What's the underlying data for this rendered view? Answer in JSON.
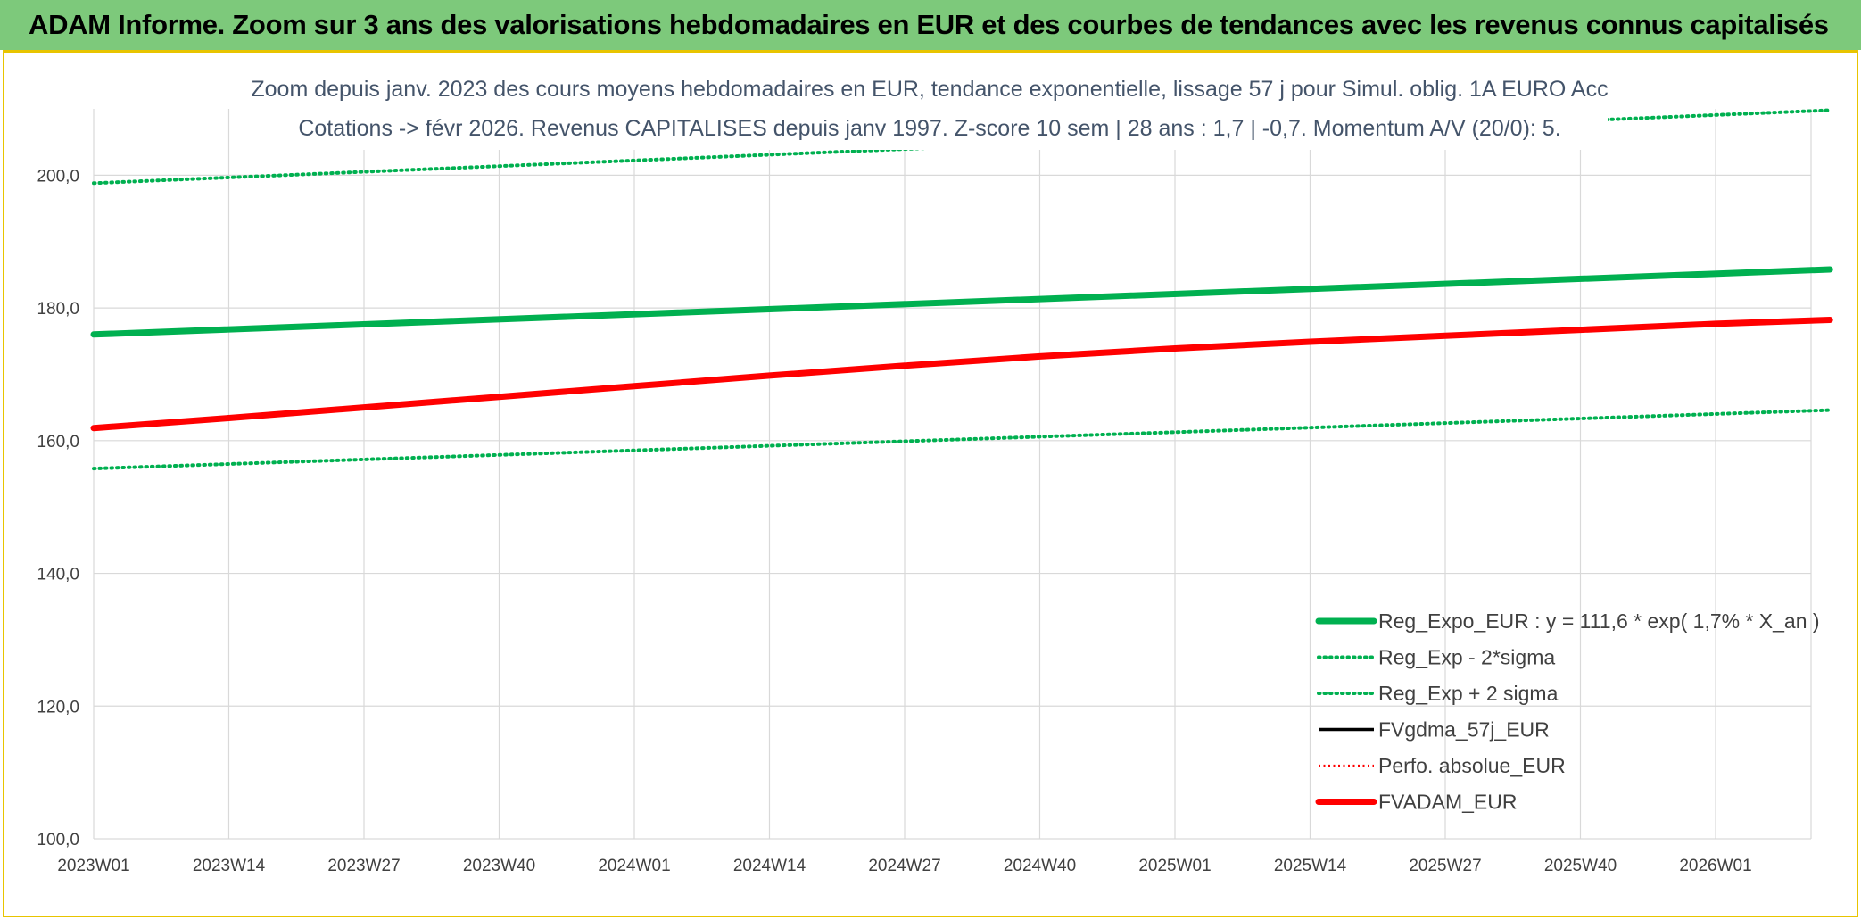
{
  "banner": {
    "title": "ADAM Informe. Zoom sur 3 ans des valorisations hebdomadaires en EUR et des courbes de tendances avec les revenus connus capitalisés"
  },
  "colors": {
    "banner_bg": "#7dc97b",
    "frame_border": "#e8c400",
    "green": "#00b050",
    "red": "#ff0000",
    "black": "#000000",
    "grid": "#d9d9d9",
    "axis_text": "#404040",
    "title_text": "#44546a"
  },
  "chart_data": {
    "type": "line",
    "title_line1": "Zoom depuis janv. 2023 des cours moyens hebdomadaires en EUR, tendance exponentielle, lissage 57 j pour Simul. oblig. 1A EURO Acc",
    "title_line2": "Cotations -> févr 2026. Revenus CAPITALISES depuis janv 1997. Z-score 10 sem | 28 ans : 1,7 | -0,7. Momentum A/V (20/0): 5.",
    "xlabel": "",
    "ylabel": "",
    "categories": [
      "2023W01",
      "2023W14",
      "2023W27",
      "2023W40",
      "2024W01",
      "2024W14",
      "2024W27",
      "2024W40",
      "2025W01",
      "2025W14",
      "2025W27",
      "2025W40",
      "2026W01"
    ],
    "x_range_weeks": [
      0,
      167
    ],
    "ylim": [
      100,
      210
    ],
    "yticks": [
      "100,0",
      "120,0",
      "140,0",
      "160,0",
      "180,0",
      "200,0"
    ],
    "ytick_values": [
      100,
      120,
      140,
      160,
      180,
      200
    ],
    "grid": true,
    "legend_position": "bottom-right",
    "series": [
      {
        "name": "Reg_Expo_EUR : y = 111,6 * exp( 1,7% *  X_an )",
        "style": "solid-thick",
        "color": "#00b050",
        "x": [
          0,
          167
        ],
        "values": [
          176.0,
          185.8
        ]
      },
      {
        "name": "Reg_Exp - 2*sigma",
        "style": "dotted",
        "color": "#00b050",
        "x": [
          0,
          167
        ],
        "values": [
          155.8,
          164.6
        ]
      },
      {
        "name": "Reg_Exp + 2 sigma",
        "style": "dotted",
        "color": "#00b050",
        "x": [
          0,
          167
        ],
        "values": [
          198.8,
          209.8
        ]
      },
      {
        "name": "FVgdma_57j_EUR",
        "style": "solid",
        "color": "#000000",
        "x": [],
        "values": []
      },
      {
        "name": "Perfo. absolue_EUR",
        "style": "dotted-thin",
        "color": "#ff0000",
        "x": [],
        "values": []
      },
      {
        "name": "FVADAM_EUR",
        "style": "solid-thick",
        "color": "#ff0000",
        "x": [
          0,
          13,
          26,
          39,
          52,
          65,
          78,
          91,
          104,
          117,
          130,
          143,
          156,
          167
        ],
        "values": [
          161.9,
          163.4,
          165.0,
          166.6,
          168.2,
          169.8,
          171.3,
          172.7,
          173.9,
          174.9,
          175.8,
          176.7,
          177.6,
          178.2
        ]
      }
    ]
  }
}
